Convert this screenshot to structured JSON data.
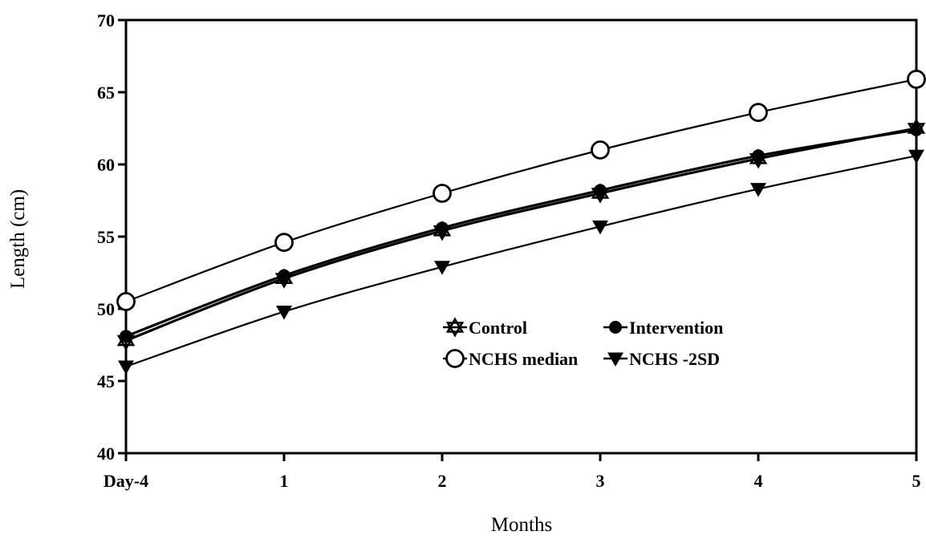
{
  "chart_data": {
    "type": "line",
    "title": "",
    "xlabel": "Months",
    "ylabel": "Length (cm)",
    "categories": [
      "Day-4",
      "1",
      "2",
      "3",
      "4",
      "5"
    ],
    "x": [
      0,
      1,
      2,
      3,
      4,
      5
    ],
    "ylim": [
      40,
      70
    ],
    "yticks": [
      "40",
      "45",
      "50",
      "55",
      "60",
      "65",
      "70"
    ],
    "grid": false,
    "legend_position": "center-right",
    "series": [
      {
        "name": "Control",
        "marker": "star",
        "values": [
          47.8,
          52.1,
          55.4,
          58.0,
          60.4,
          62.5
        ]
      },
      {
        "name": "Intervention",
        "marker": "filled-circle",
        "values": [
          48.1,
          52.3,
          55.6,
          58.2,
          60.6,
          62.4
        ]
      },
      {
        "name": "NCHS median",
        "marker": "open-circle",
        "values": [
          50.5,
          54.6,
          58.0,
          61.0,
          63.6,
          65.9
        ]
      },
      {
        "name": "NCHS -2SD",
        "marker": "filled-triangle-down",
        "values": [
          46.0,
          49.8,
          52.9,
          55.7,
          58.3,
          60.6
        ]
      }
    ],
    "colors": {
      "line": "#000000",
      "background": "#ffffff"
    }
  }
}
